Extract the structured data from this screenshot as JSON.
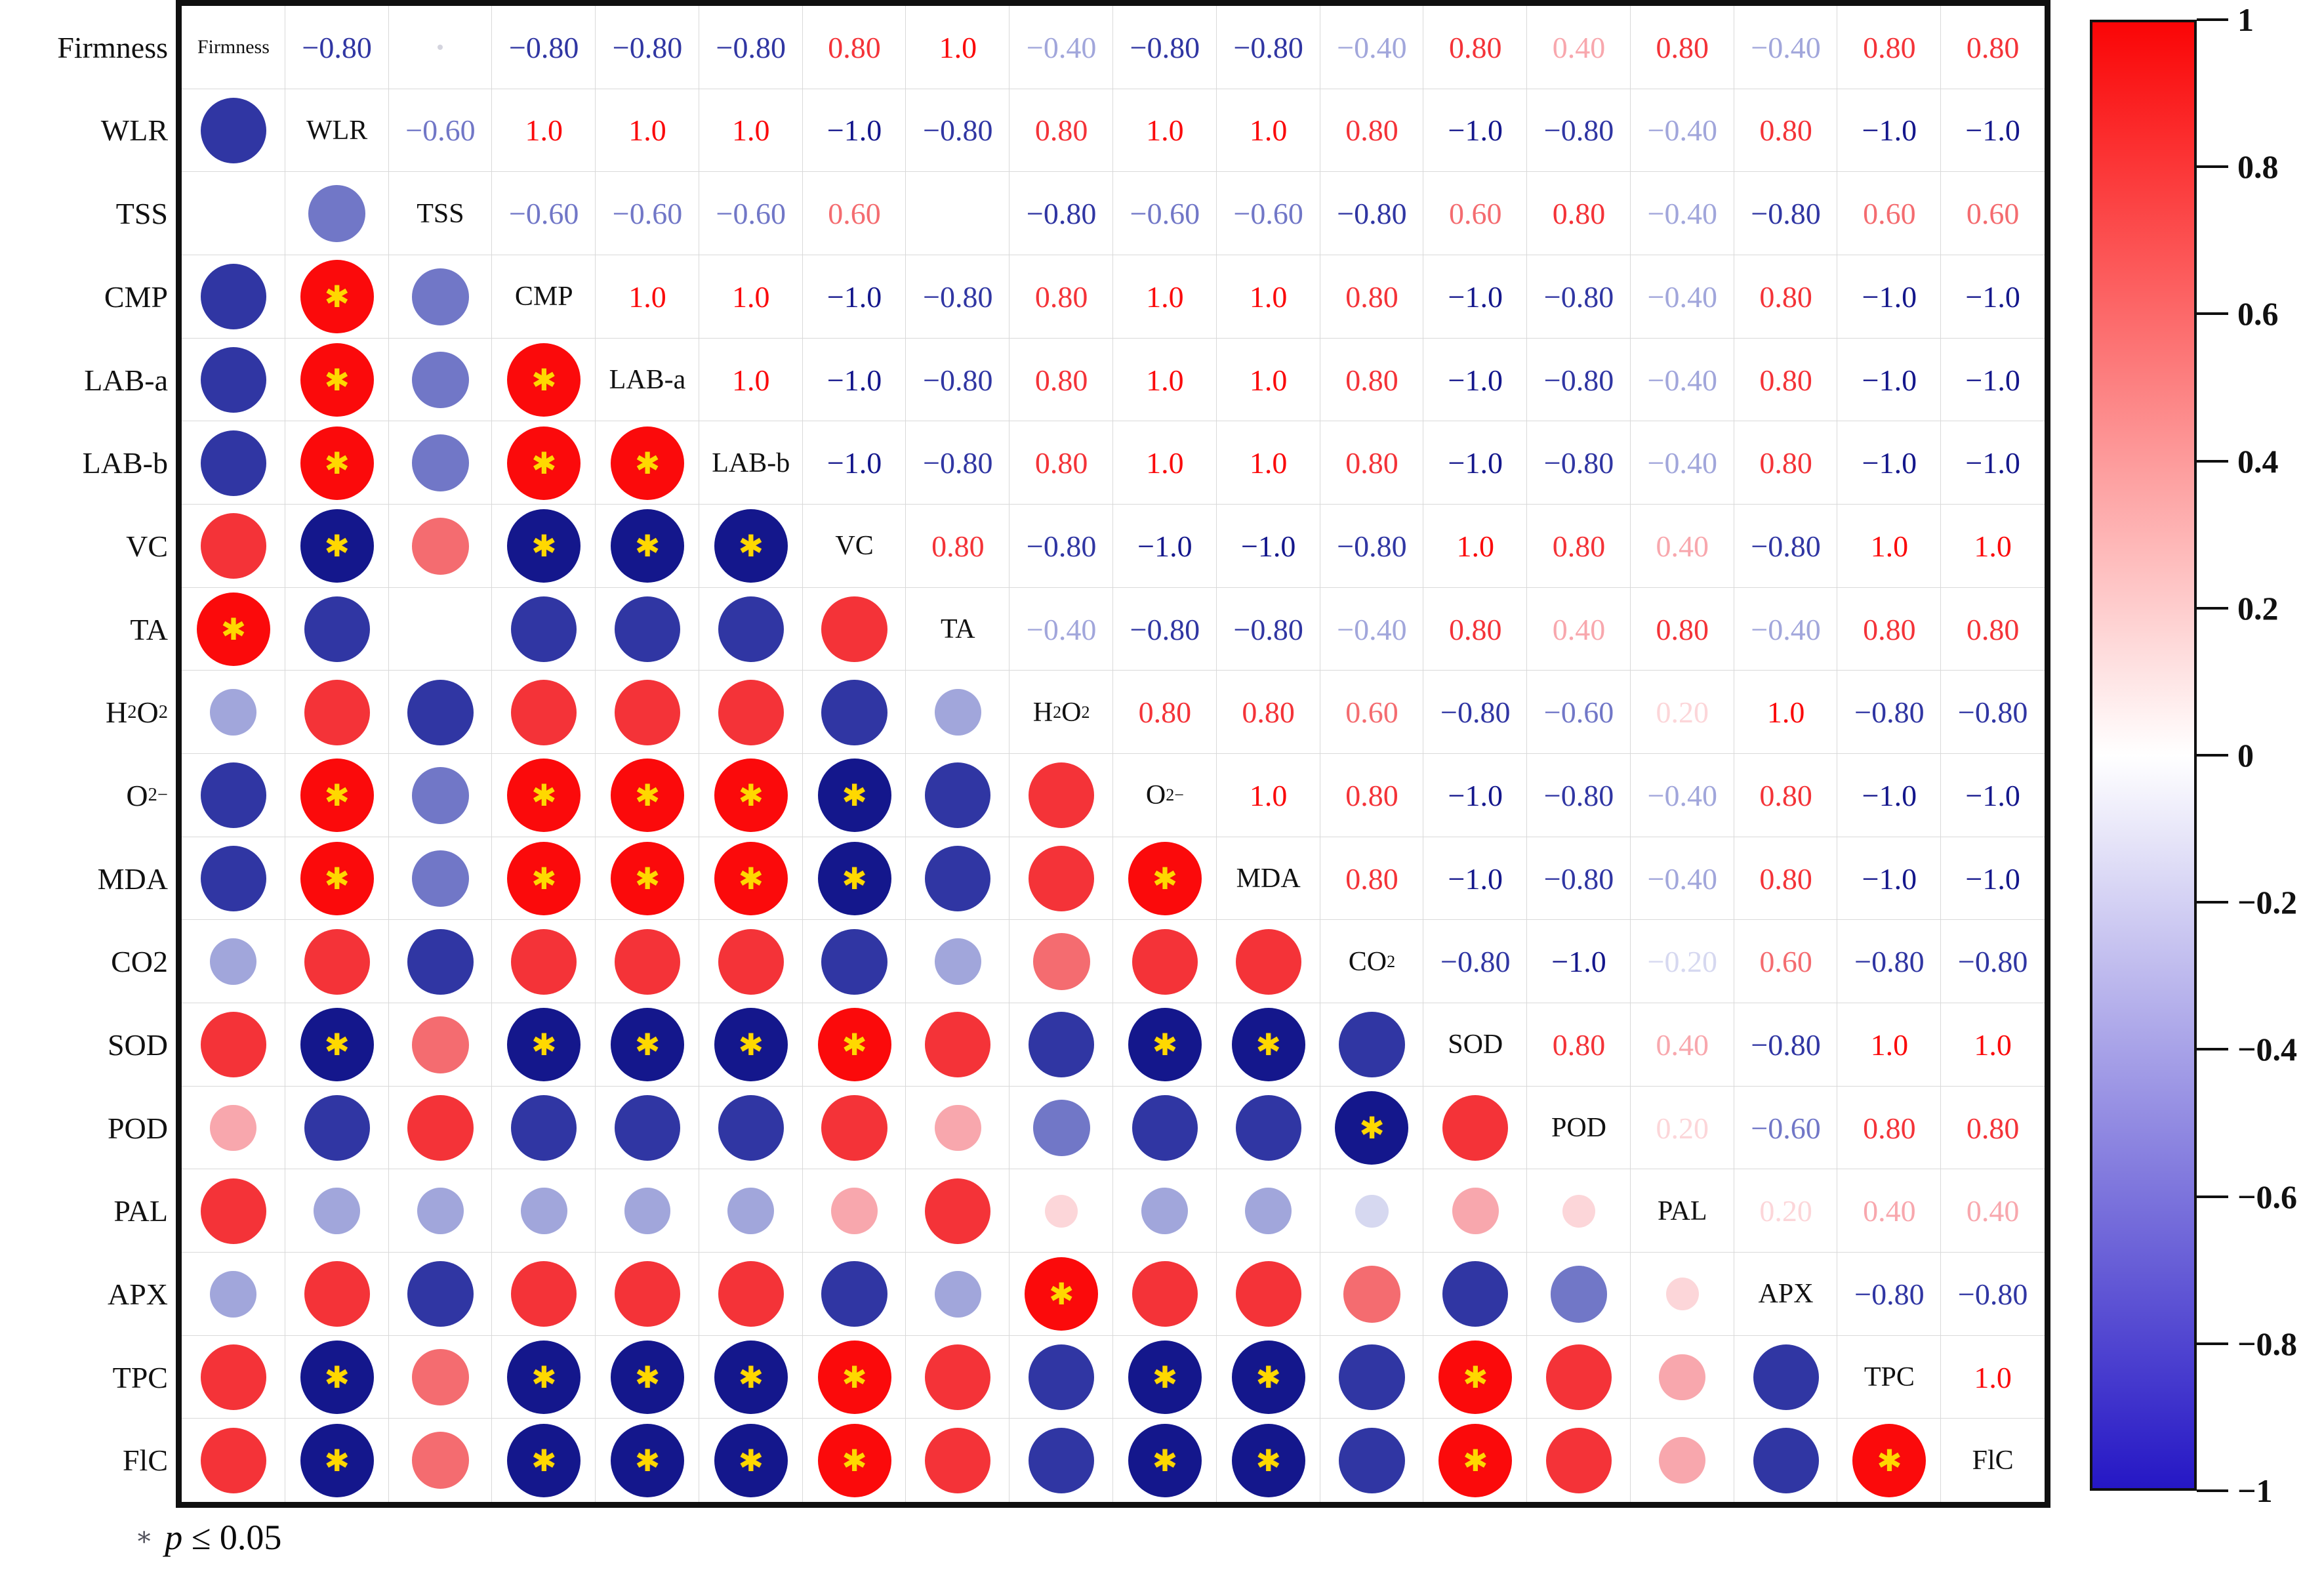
{
  "chart_data": {
    "type": "heatmap",
    "subtype": "correlation-matrix",
    "title": "",
    "variables_axis": [
      "Firmness",
      "WLR",
      "TSS",
      "CMP",
      "LAB-a",
      "LAB-b",
      "VC",
      "TA",
      "H~2~O~2~",
      "O~2~^−^",
      "MDA",
      "CO2",
      "SOD",
      "POD",
      "PAL",
      "APX",
      "TPC",
      "FlC"
    ],
    "variables_diagonal": [
      "Firmness",
      "WLR",
      "TSS",
      "CMP",
      "LAB-a",
      "LAB-b",
      "VC",
      "TA",
      "H~2~O~2~",
      "O~2~^−^",
      "MDA",
      "CO~2~",
      "SOD",
      "POD",
      "PAL",
      "APX",
      "TPC",
      "FlC"
    ],
    "upper_triangle": [
      [
        -0.8,
        0.0,
        -0.8,
        -0.8,
        -0.8,
        0.8,
        1.0,
        -0.4,
        -0.8,
        -0.8,
        -0.4,
        0.8,
        0.4,
        0.8,
        -0.4,
        0.8,
        0.8
      ],
      [
        -0.6,
        1.0,
        1.0,
        1.0,
        -1.0,
        -0.8,
        0.8,
        1.0,
        1.0,
        0.8,
        -1.0,
        -0.8,
        -0.4,
        0.8,
        -1.0,
        -1.0
      ],
      [
        -0.6,
        -0.6,
        -0.6,
        0.6,
        0.0,
        -0.8,
        -0.6,
        -0.6,
        -0.8,
        0.6,
        0.8,
        -0.4,
        -0.8,
        0.6,
        0.6
      ],
      [
        1.0,
        1.0,
        -1.0,
        -0.8,
        0.8,
        1.0,
        1.0,
        0.8,
        -1.0,
        -0.8,
        -0.4,
        0.8,
        -1.0,
        -1.0
      ],
      [
        1.0,
        -1.0,
        -0.8,
        0.8,
        1.0,
        1.0,
        0.8,
        -1.0,
        -0.8,
        -0.4,
        0.8,
        -1.0,
        -1.0
      ],
      [
        -1.0,
        -0.8,
        0.8,
        1.0,
        1.0,
        0.8,
        -1.0,
        -0.8,
        -0.4,
        0.8,
        -1.0,
        -1.0
      ],
      [
        0.8,
        -0.8,
        -1.0,
        -1.0,
        -0.8,
        1.0,
        0.8,
        0.4,
        -0.8,
        1.0,
        1.0
      ],
      [
        -0.4,
        -0.8,
        -0.8,
        -0.4,
        0.8,
        0.4,
        0.8,
        -0.4,
        0.8,
        0.8
      ],
      [
        0.8,
        0.8,
        0.6,
        -0.8,
        -0.6,
        0.2,
        1.0,
        -0.8,
        -0.8
      ],
      [
        1.0,
        0.8,
        -1.0,
        -0.8,
        -0.4,
        0.8,
        -1.0,
        -1.0
      ],
      [
        0.8,
        -1.0,
        -0.8,
        -0.4,
        0.8,
        -1.0,
        -1.0
      ],
      [
        -0.8,
        -1.0,
        -0.2,
        0.6,
        -0.8,
        -0.8
      ],
      [
        0.8,
        0.4,
        -0.8,
        1.0,
        1.0
      ],
      [
        0.2,
        -0.6,
        0.8,
        0.8
      ],
      [
        0.2,
        0.4,
        0.4
      ],
      [
        -0.8,
        -0.8
      ],
      [
        1.0
      ],
      []
    ],
    "zero_dot_cells": [
      [
        0,
        2
      ]
    ],
    "significance": {
      "marker": "✱",
      "rule": "p ≤ 0.05",
      "applies_to_abs_r": 1.0,
      "star_color": "#ffd800"
    },
    "colormap": {
      "1": "#fb0a0b",
      "0.8": "#f43338",
      "0.6": "#f46c70",
      "0.4": "#f8a7ad",
      "0.2": "#fcd6d9",
      "0": "#ffffff",
      "-0.2": "#d6d8f0",
      "-0.4": "#a1a6db",
      "-0.6": "#7177c7",
      "-0.8": "#3036a3",
      "-1": "#14178c"
    },
    "colorbar": {
      "min": -1,
      "max": 1,
      "top_color": "#fa0506",
      "mid_color": "#ffffff",
      "bottom_color": "#2517c5",
      "tick_values": [
        1,
        0.8,
        0.6,
        0.4,
        0.2,
        0,
        -0.2,
        -0.4,
        -0.6,
        -0.8,
        -1
      ],
      "tick_labels": [
        "1",
        "0.8",
        "0.6",
        "0.4",
        "0.2",
        "0",
        "−0.2",
        "−0.4",
        "−0.6",
        "−0.8",
        "−1"
      ]
    },
    "annotation": {
      "marker": "∗",
      "text": "p ≤ 0.05"
    }
  }
}
